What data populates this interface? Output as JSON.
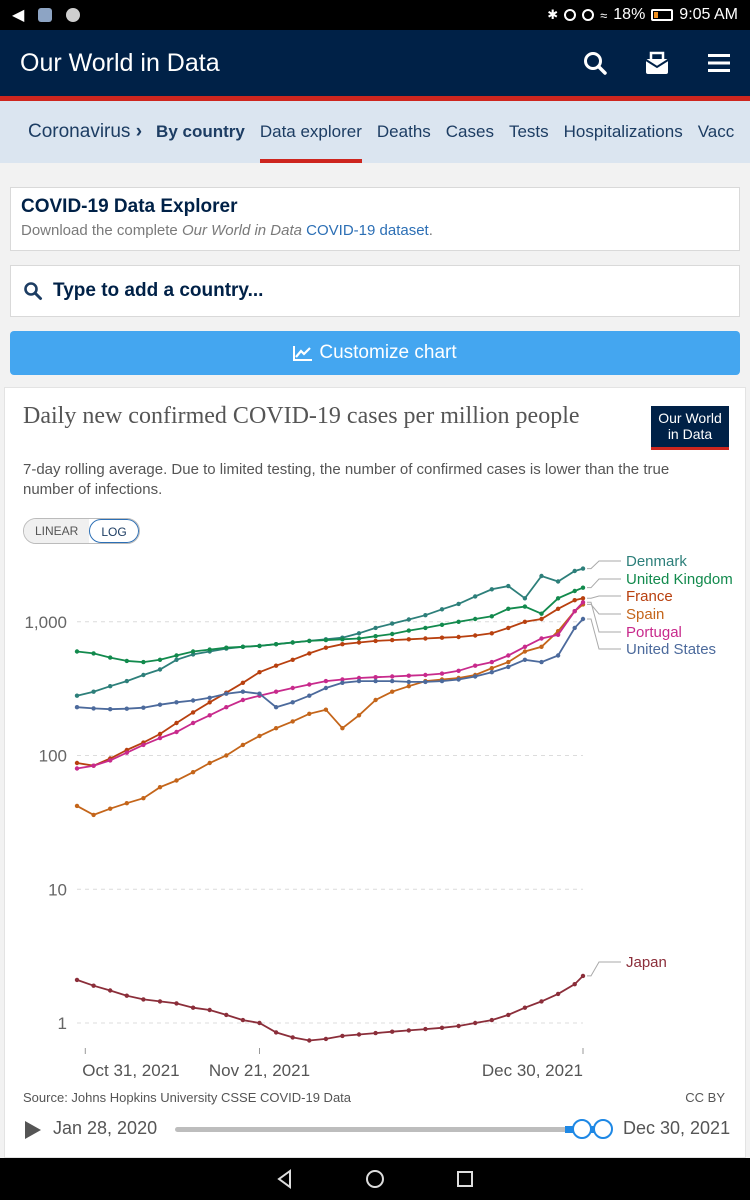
{
  "statusbar": {
    "battery": "18%",
    "time": "9:05 AM"
  },
  "header": {
    "logo": "Our World in Data"
  },
  "subnav": {
    "crumb": "Coronavirus",
    "tabs": [
      {
        "label": "By country",
        "bold": true
      },
      {
        "label": "Data explorer",
        "active": true
      },
      {
        "label": "Deaths"
      },
      {
        "label": "Cases"
      },
      {
        "label": "Tests"
      },
      {
        "label": "Hospitalizations"
      },
      {
        "label": "Vacc"
      }
    ]
  },
  "explorer": {
    "title": "COVID-19 Data Explorer",
    "download_prefix": "Download the complete ",
    "download_owid": "Our World in Data",
    "download_link": "COVID-19 dataset",
    "download_suffix": "."
  },
  "search": {
    "placeholder": "Type to add a country..."
  },
  "customize_label": "Customize chart",
  "chart": {
    "title": "Daily new confirmed COVID-19 cases per million people",
    "badge_line1": "Our World",
    "badge_line2": "in Data",
    "subtitle": "7-day rolling average. Due to limited testing, the number of confirmed cases is lower than the true number of infections.",
    "scale_options": [
      "LINEAR",
      "LOG"
    ],
    "scale_selected": "LOG",
    "source": "Source: Johns Hopkins University CSSE COVID-19 Data",
    "license": "CC BY"
  },
  "timeline": {
    "start": "Jan 28, 2020",
    "end": "Dec 30, 2021",
    "start_handle": 0.95,
    "end_handle": 1.0
  },
  "colors": {
    "Denmark": "#2d7f7a",
    "United Kingdom": "#128a4d",
    "France": "#b8400f",
    "Spain": "#c4651a",
    "Portugal": "#c82a8c",
    "United States": "#4c6a9c",
    "Japan": "#8b2e3a"
  },
  "chart_data": {
    "type": "line",
    "yscale": "log",
    "ylim": [
      0.65,
      3000
    ],
    "y_ticks": [
      1,
      10,
      100,
      1000
    ],
    "y_tick_labels": [
      "1",
      "10",
      "100",
      "1,000"
    ],
    "x_ticks": [
      "Oct 31, 2021",
      "Nov 21, 2021",
      "Dec 30, 2021"
    ],
    "x_range": [
      "Oct 30, 2021",
      "Dec 30, 2021"
    ],
    "x_tick_dates": [
      "2021-10-31",
      "2021-11-21",
      "2021-12-30"
    ],
    "x_start": "2021-10-30",
    "x": [
      "2021-10-30",
      "2021-11-01",
      "2021-11-03",
      "2021-11-05",
      "2021-11-07",
      "2021-11-09",
      "2021-11-11",
      "2021-11-13",
      "2021-11-15",
      "2021-11-17",
      "2021-11-19",
      "2021-11-21",
      "2021-11-23",
      "2021-11-25",
      "2021-11-27",
      "2021-11-29",
      "2021-12-01",
      "2021-12-03",
      "2021-12-05",
      "2021-12-07",
      "2021-12-09",
      "2021-12-11",
      "2021-12-13",
      "2021-12-15",
      "2021-12-17",
      "2021-12-19",
      "2021-12-21",
      "2021-12-23",
      "2021-12-25",
      "2021-12-27",
      "2021-12-29",
      "2021-12-30"
    ],
    "series": [
      {
        "name": "Denmark",
        "values": [
          280,
          300,
          330,
          360,
          400,
          440,
          520,
          570,
          600,
          630,
          650,
          660,
          680,
          700,
          720,
          740,
          760,
          820,
          900,
          970,
          1040,
          1120,
          1240,
          1360,
          1550,
          1750,
          1850,
          1500,
          2200,
          2000,
          2400,
          2500
        ]
      },
      {
        "name": "United Kingdom",
        "values": [
          600,
          580,
          540,
          510,
          500,
          520,
          560,
          600,
          620,
          640,
          650,
          660,
          680,
          700,
          720,
          730,
          740,
          750,
          780,
          810,
          860,
          900,
          950,
          1000,
          1050,
          1100,
          1250,
          1300,
          1150,
          1500,
          1700,
          1800
        ]
      },
      {
        "name": "France",
        "values": [
          88,
          84,
          95,
          110,
          125,
          145,
          175,
          210,
          250,
          295,
          350,
          420,
          470,
          520,
          580,
          640,
          680,
          700,
          720,
          730,
          740,
          750,
          760,
          770,
          790,
          820,
          900,
          1000,
          1050,
          1250,
          1450,
          1500
        ]
      },
      {
        "name": "Spain",
        "values": [
          42,
          36,
          40,
          44,
          48,
          58,
          65,
          75,
          88,
          100,
          120,
          140,
          160,
          180,
          205,
          220,
          160,
          200,
          260,
          300,
          330,
          360,
          370,
          380,
          400,
          450,
          500,
          600,
          650,
          850,
          1200,
          1350
        ]
      },
      {
        "name": "Portugal",
        "values": [
          80,
          84,
          92,
          105,
          120,
          135,
          150,
          175,
          200,
          230,
          260,
          280,
          300,
          320,
          340,
          360,
          370,
          380,
          385,
          390,
          395,
          400,
          410,
          430,
          470,
          500,
          560,
          650,
          750,
          800,
          1200,
          1400
        ]
      },
      {
        "name": "United States",
        "values": [
          230,
          225,
          222,
          224,
          228,
          240,
          250,
          258,
          270,
          290,
          300,
          290,
          230,
          250,
          280,
          320,
          350,
          360,
          360,
          360,
          355,
          355,
          360,
          370,
          390,
          420,
          460,
          520,
          500,
          560,
          900,
          1050
        ]
      },
      {
        "name": "Japan",
        "values": [
          2.1,
          1.9,
          1.75,
          1.6,
          1.5,
          1.45,
          1.4,
          1.3,
          1.25,
          1.15,
          1.05,
          1.0,
          0.85,
          0.78,
          0.74,
          0.76,
          0.8,
          0.82,
          0.84,
          0.86,
          0.88,
          0.9,
          0.92,
          0.95,
          1.0,
          1.05,
          1.15,
          1.3,
          1.45,
          1.65,
          1.95,
          2.25
        ]
      }
    ]
  }
}
